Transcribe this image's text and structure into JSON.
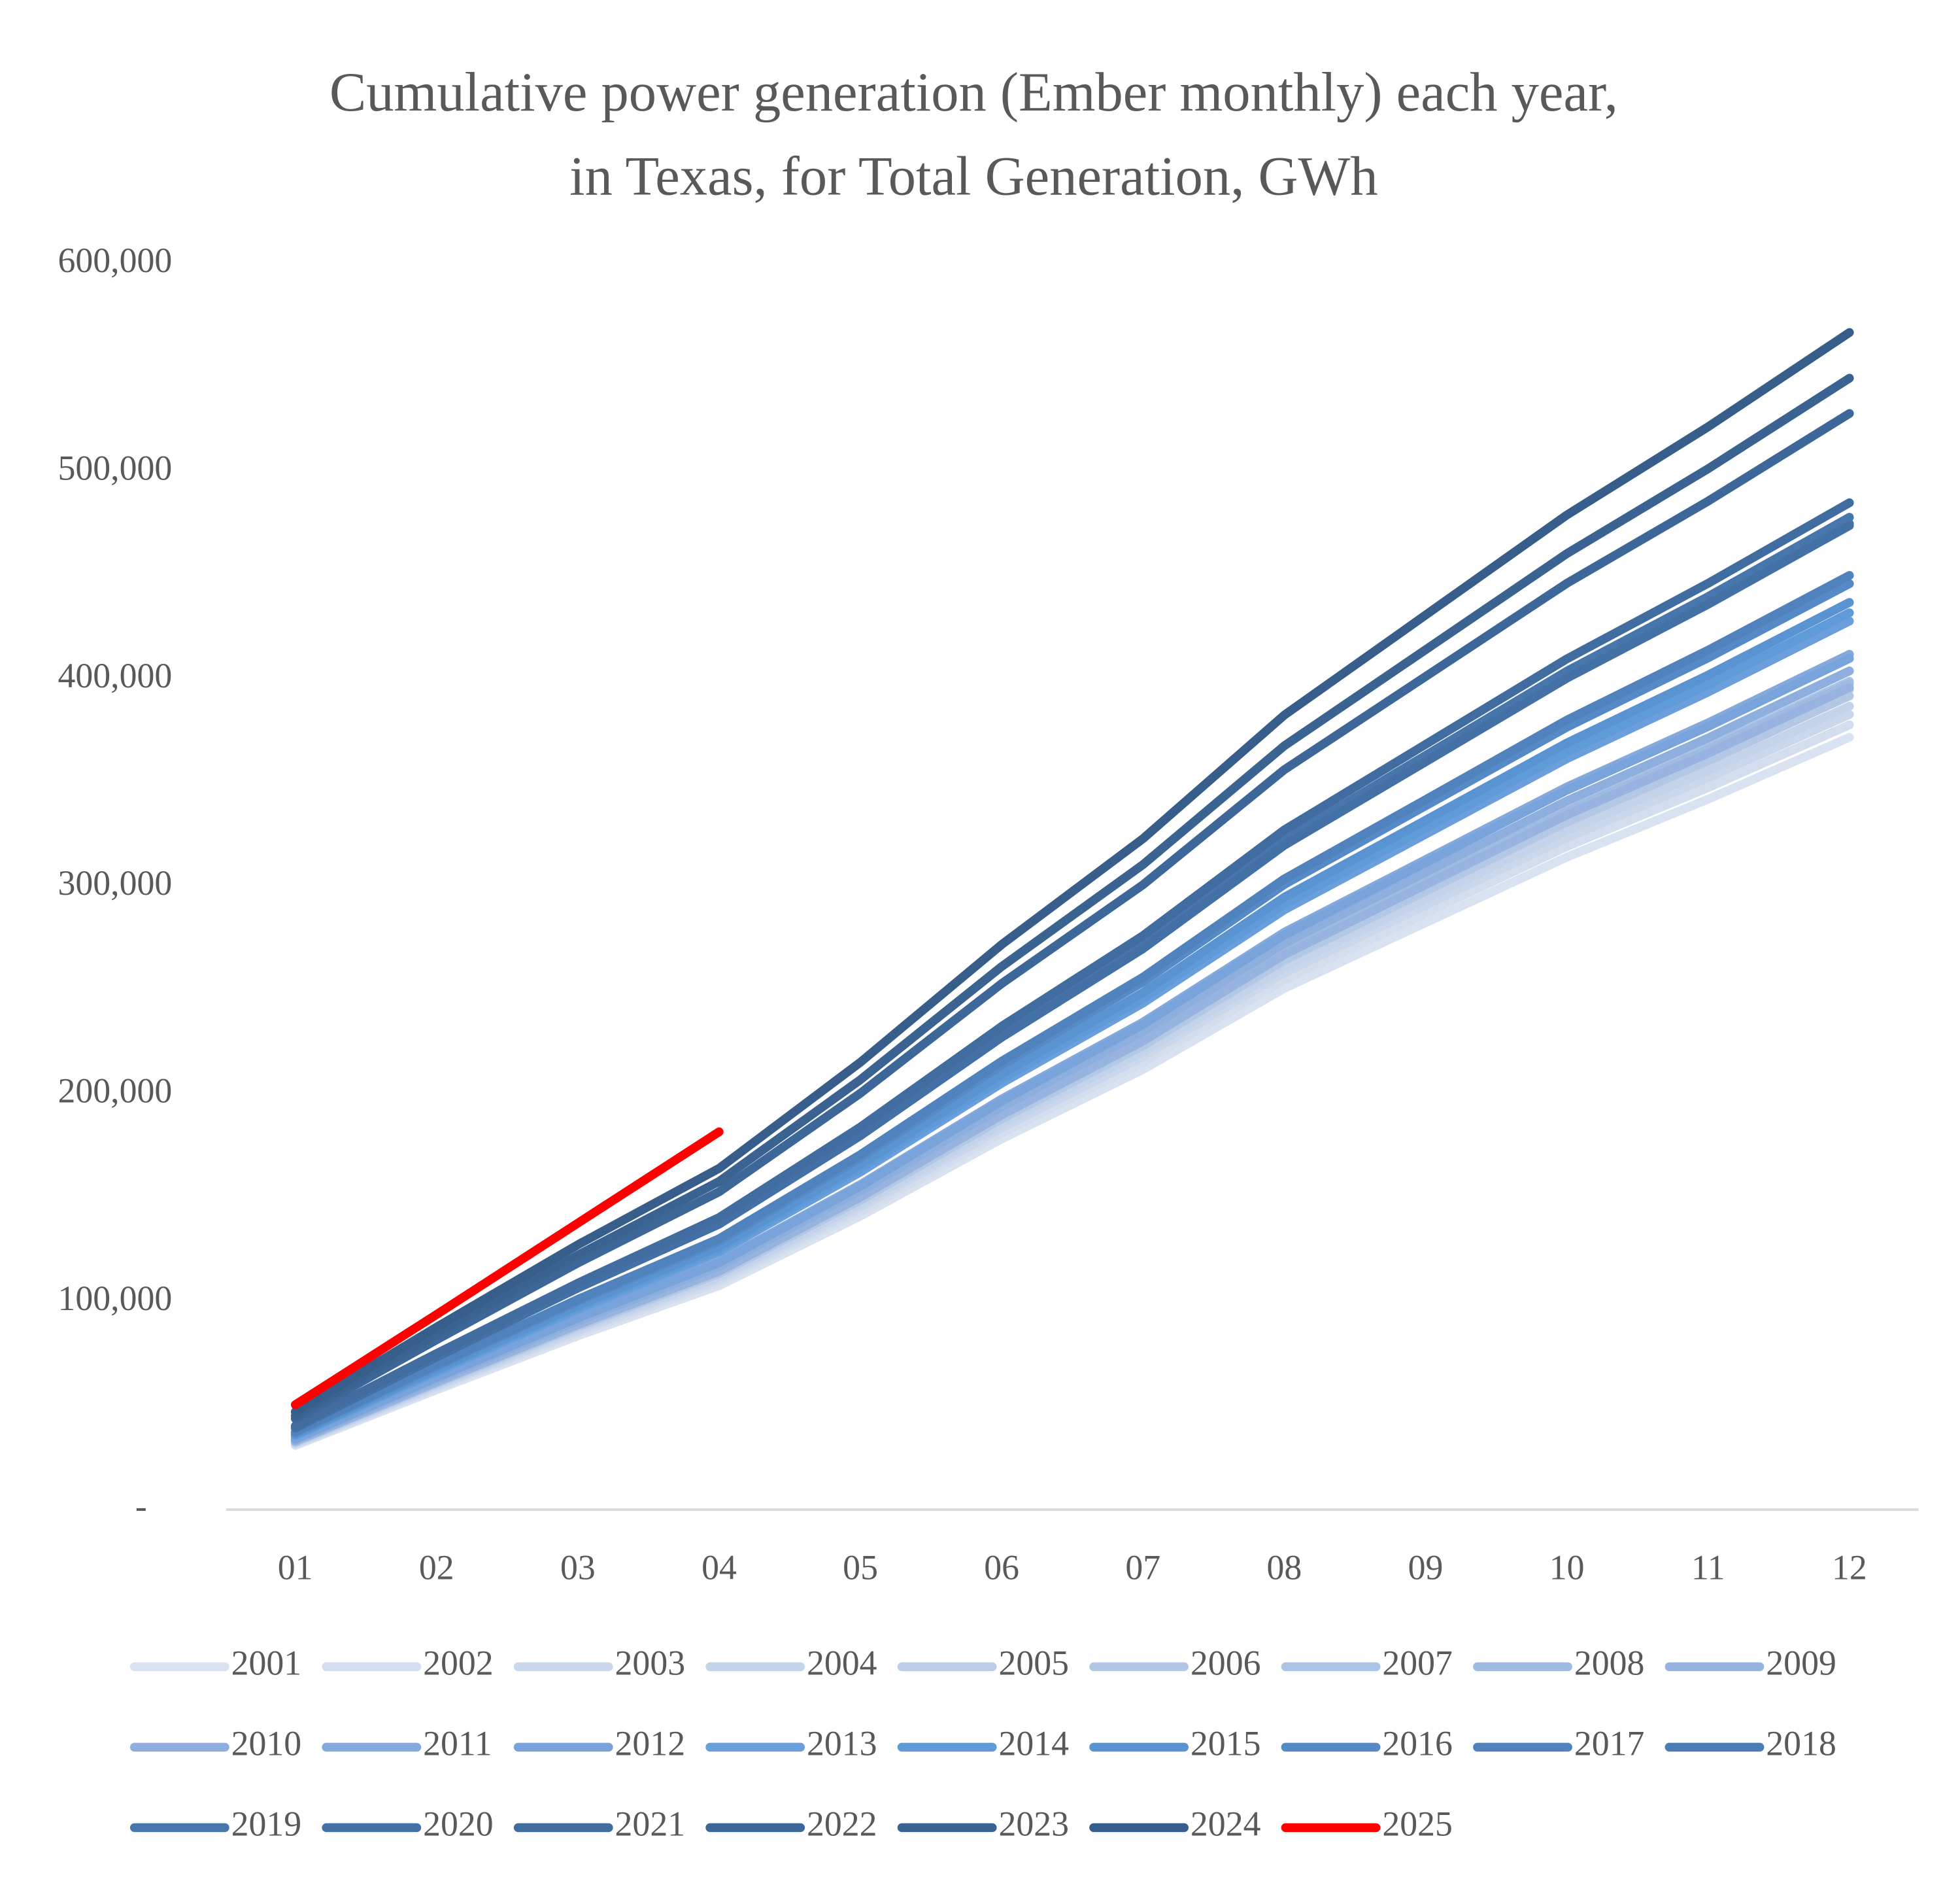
{
  "chart_data": {
    "type": "line",
    "title": "Cumulative power generation (Ember monthly) each year, in Texas, for Total Generation, GWh",
    "categories": [
      "01",
      "02",
      "03",
      "04",
      "05",
      "06",
      "07",
      "08",
      "09",
      "10",
      "11",
      "12"
    ],
    "ylim": [
      0,
      600000
    ],
    "yticks": [
      {
        "value": 0,
        "label": "-"
      },
      {
        "value": 100000,
        "label": "100,000"
      },
      {
        "value": 200000,
        "label": "200,000"
      },
      {
        "value": 300000,
        "label": "300,000"
      },
      {
        "value": 400000,
        "label": "400,000"
      },
      {
        "value": 500000,
        "label": "500,000"
      },
      {
        "value": 600000,
        "label": "600,000"
      }
    ],
    "grid": false,
    "legend": "bottom",
    "series": [
      {
        "name": "2001",
        "color": "#d9e2f0",
        "values": [
          30900,
          57700,
          83700,
          107900,
          141400,
          178600,
          212000,
          251100,
          282700,
          314300,
          342200,
          372000
        ]
      },
      {
        "name": "2002",
        "color": "#d3dded",
        "values": [
          31400,
          58600,
          85100,
          109600,
          143600,
          181400,
          215500,
          255200,
          287300,
          319400,
          347800,
          378000
        ]
      },
      {
        "name": "2003",
        "color": "#cbd8ec",
        "values": [
          31800,
          59400,
          86200,
          111100,
          145500,
          183800,
          218300,
          258500,
          291100,
          323600,
          352400,
          383000
        ]
      },
      {
        "name": "2004",
        "color": "#c3d3ea",
        "values": [
          32100,
          60000,
          87100,
          112200,
          147100,
          185800,
          220600,
          261200,
          294100,
          327000,
          356000,
          387000
        ]
      },
      {
        "name": "2005",
        "color": "#bccde8",
        "values": [
          32800,
          61200,
          88900,
          114600,
          150100,
          189600,
          225200,
          266600,
          300200,
          333800,
          363400,
          395000
        ]
      },
      {
        "name": "2006",
        "color": "#b4c8e6",
        "values": [
          32500,
          60800,
          88200,
          113700,
          149000,
          188200,
          223400,
          264600,
          297900,
          331200,
          360600,
          392000
        ]
      },
      {
        "name": "2007",
        "color": "#abc3e4",
        "values": [
          33100,
          61800,
          89800,
          115700,
          151600,
          191500,
          227400,
          269300,
          303200,
          337200,
          367100,
          399000
        ]
      },
      {
        "name": "2008",
        "color": "#a0bbe1",
        "values": [
          33000,
          61700,
          89600,
          115400,
          151200,
          191000,
          226900,
          268700,
          302500,
          336300,
          366200,
          398000
        ]
      },
      {
        "name": "2009",
        "color": "#96b4df",
        "values": [
          32900,
          61400,
          89100,
          114800,
          150500,
          190100,
          225700,
          267300,
          301000,
          334600,
          364300,
          396000
        ]
      },
      {
        "name": "2010",
        "color": "#8eafdd",
        "values": [
          33500,
          62600,
          90900,
          117200,
          153500,
          193900,
          230300,
          272700,
          307000,
          341400,
          371700,
          404000
        ]
      },
      {
        "name": "2011",
        "color": "#84a9dc",
        "values": [
          34200,
          63900,
          92700,
          119500,
          156600,
          197800,
          234800,
          278100,
          313100,
          348100,
          379000,
          412000
        ]
      },
      {
        "name": "2012",
        "color": "#78a3db",
        "values": [
          34000,
          63600,
          92300,
          118900,
          155800,
          196800,
          233700,
          276800,
          311600,
          346500,
          377200,
          410000
        ]
      },
      {
        "name": "2013",
        "color": "#6a9fdc",
        "values": [
          35500,
          66300,
          96300,
          124100,
          162600,
          205400,
          244000,
          288900,
          325300,
          361700,
          393800,
          428000
        ]
      },
      {
        "name": "2014",
        "color": "#5f9ad9",
        "values": [
          35900,
          67000,
          97200,
          125300,
          164200,
          207400,
          246200,
          291600,
          328300,
          365000,
          397400,
          432000
        ]
      },
      {
        "name": "2015",
        "color": "#5a93d1",
        "values": [
          36300,
          67700,
          98300,
          126700,
          166100,
          209800,
          249100,
          295000,
          332100,
          369300,
          402000,
          437000
        ]
      },
      {
        "name": "2016",
        "color": "#558ac6",
        "values": [
          37000,
          69100,
          100400,
          129300,
          169500,
          214100,
          254200,
          301100,
          339000,
          376900,
          410300,
          446000
        ]
      },
      {
        "name": "2017",
        "color": "#5083bd",
        "values": [
          37400,
          69800,
          101300,
          130500,
          171000,
          216000,
          256500,
          303800,
          342000,
          380300,
          414000,
          450000
        ]
      },
      {
        "name": "2018",
        "color": "#4b7db5",
        "values": [
          39400,
          73600,
          106900,
          137800,
          180500,
          228000,
          270800,
          320600,
          361000,
          401400,
          437000,
          475000
        ]
      },
      {
        "name": "2019",
        "color": "#4676ab",
        "values": [
          39700,
          74100,
          107600,
          138600,
          181600,
          229400,
          272500,
          322700,
          363300,
          403900,
          439800,
          478000
        ]
      },
      {
        "name": "2020",
        "color": "#4371a5",
        "values": [
          39300,
          73500,
          106700,
          137500,
          180100,
          227500,
          270200,
          320000,
          360200,
          400500,
          436100,
          474000
        ]
      },
      {
        "name": "2021",
        "color": "#406c9f",
        "values": [
          40300,
          75200,
          109100,
          140700,
          184300,
          232800,
          276500,
          327400,
          368600,
          409800,
          446200,
          485000
        ]
      },
      {
        "name": "2022",
        "color": "#3d6798",
        "values": [
          43800,
          81800,
          118800,
          153100,
          200600,
          253400,
          301000,
          356400,
          401300,
          446200,
          485800,
          528000
        ]
      },
      {
        "name": "2023",
        "color": "#3a6391",
        "values": [
          45200,
          84500,
          122600,
          158100,
          207100,
          261600,
          310700,
          367900,
          414200,
          460500,
          501400,
          545000
        ]
      },
      {
        "name": "2024",
        "color": "#375e8a",
        "values": [
          47100,
          87900,
          127600,
          164400,
          215500,
          272200,
          323200,
          382700,
          430900,
          479100,
          521600,
          567000
        ]
      },
      {
        "name": "2025",
        "color": "#ff0000",
        "values": [
          50500,
          94000,
          138000,
          182000,
          null,
          null,
          null,
          null,
          null,
          null,
          null,
          null
        ]
      }
    ]
  }
}
